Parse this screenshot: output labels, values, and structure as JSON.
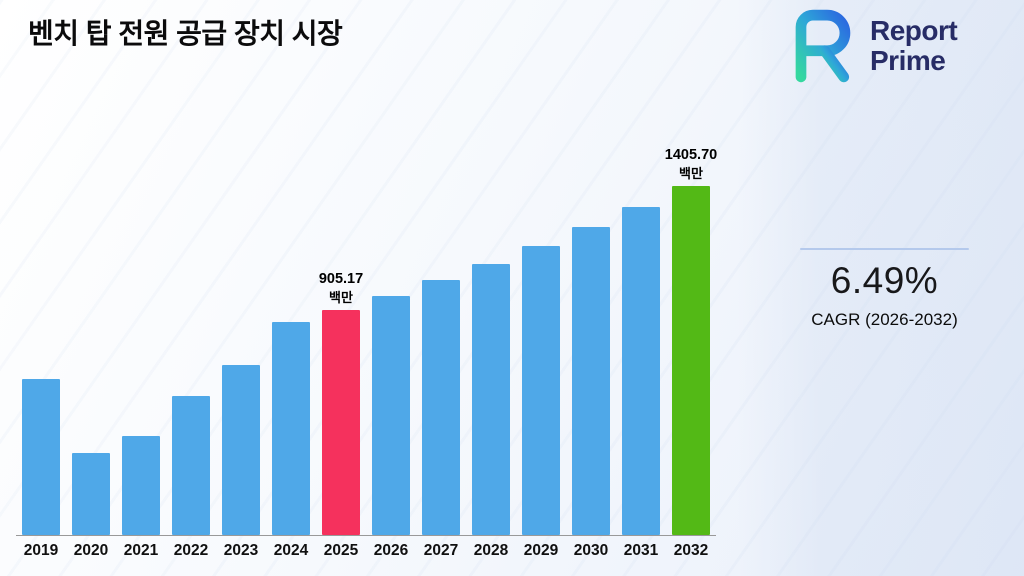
{
  "header": {
    "title": "벤치 탑 전원 공급 장치 시장"
  },
  "logo": {
    "line1": "Report",
    "line2": "Prime"
  },
  "stats": {
    "cagr_value": "6.49%",
    "cagr_label": "CAGR (2026-2032)"
  },
  "chart_data": {
    "type": "bar",
    "title": "벤치 탑 전원 공급 장치 시장",
    "unit": "백만",
    "categories": [
      "2019",
      "2020",
      "2021",
      "2022",
      "2023",
      "2024",
      "2025",
      "2026",
      "2027",
      "2028",
      "2029",
      "2030",
      "2031",
      "2032"
    ],
    "values": [
      630,
      330,
      400,
      560,
      685,
      858,
      905.17,
      963.9,
      1026.5,
      1093.1,
      1164.0,
      1239.6,
      1320.0,
      1405.7
    ],
    "colors": [
      "#4FA8E8",
      "#4FA8E8",
      "#4FA8E8",
      "#4FA8E8",
      "#4FA8E8",
      "#4FA8E8",
      "#F5315D",
      "#4FA8E8",
      "#4FA8E8",
      "#4FA8E8",
      "#4FA8E8",
      "#4FA8E8",
      "#4FA8E8",
      "#53B916"
    ],
    "bar_color_default": "#4FA8E8",
    "highlight_colors": {
      "2025": "#F5315D",
      "2032": "#53B916"
    },
    "annotations": [
      {
        "index": 6,
        "category": "2025",
        "value_label": "905.17",
        "unit": "백만"
      },
      {
        "index": 13,
        "category": "2032",
        "value_label": "1405.70",
        "unit": "백만"
      }
    ],
    "xlabel": "",
    "ylabel": "",
    "ylim": [
      0,
      1450
    ],
    "grid": false,
    "legend": "none"
  }
}
